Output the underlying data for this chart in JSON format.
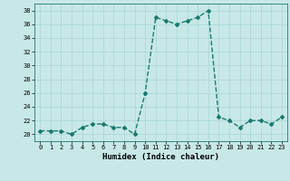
{
  "xlabel": "Humidex (Indice chaleur)",
  "ylabel": "",
  "x": [
    0,
    1,
    2,
    3,
    4,
    5,
    6,
    7,
    8,
    9,
    10,
    11,
    12,
    13,
    14,
    15,
    16,
    17,
    18,
    19,
    20,
    21,
    22,
    23
  ],
  "y": [
    20.5,
    20.5,
    20.5,
    20,
    21,
    21.5,
    21.5,
    21,
    21,
    20,
    26,
    37,
    36.5,
    36,
    36.5,
    37,
    38,
    22.5,
    22,
    21,
    22,
    22,
    21.5,
    22.5
  ],
  "line_color": "#1a7a6e",
  "bg_color": "#c8e8e8",
  "grid_color": "#a8d4d4",
  "ylim": [
    19,
    39
  ],
  "xlim": [
    -0.5,
    23.5
  ],
  "yticks": [
    20,
    22,
    24,
    26,
    28,
    30,
    32,
    34,
    36,
    38
  ],
  "xticks": [
    0,
    1,
    2,
    3,
    4,
    5,
    6,
    7,
    8,
    9,
    10,
    11,
    12,
    13,
    14,
    15,
    16,
    17,
    18,
    19,
    20,
    21,
    22,
    23
  ],
  "marker": "D",
  "markersize": 2.0,
  "linewidth": 1.0,
  "label_fontsize": 6.5,
  "tick_fontsize": 5.0
}
